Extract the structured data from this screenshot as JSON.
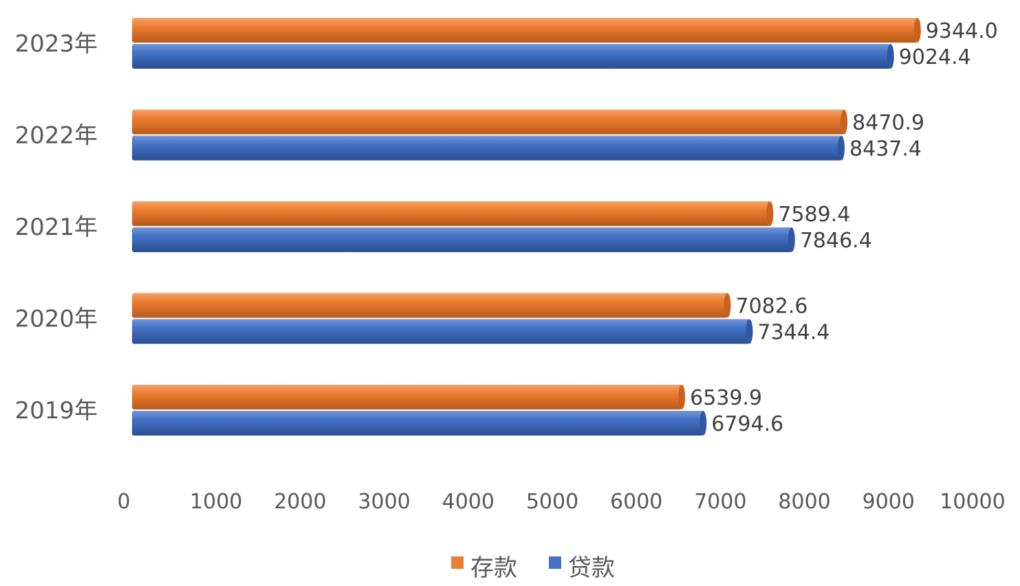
{
  "chart_data": {
    "type": "bar",
    "orientation": "horizontal",
    "categories": [
      "2023年",
      "2022年",
      "2021年",
      "2020年",
      "2019年"
    ],
    "series": [
      {
        "name": "存款",
        "color": "#ED7D31",
        "values": [
          9344.0,
          8470.9,
          7589.4,
          7082.6,
          6539.9
        ],
        "labels": [
          "9344.0",
          "8470.9",
          "7589.4",
          "7082.6",
          "6539.9"
        ]
      },
      {
        "name": "贷款",
        "color": "#4472C4",
        "values": [
          9024.4,
          8437.4,
          7846.4,
          7344.4,
          6794.6
        ],
        "labels": [
          "9024.4",
          "8437.4",
          "7846.4",
          "7344.4",
          "6794.6"
        ]
      }
    ],
    "xlim": [
      0,
      10000
    ],
    "xticks": [
      "0",
      "1000",
      "2000",
      "3000",
      "4000",
      "5000",
      "6000",
      "7000",
      "8000",
      "9000",
      "10000"
    ],
    "grid": false,
    "legend_position": "bottom",
    "title": "",
    "xlabel": "",
    "ylabel": ""
  }
}
